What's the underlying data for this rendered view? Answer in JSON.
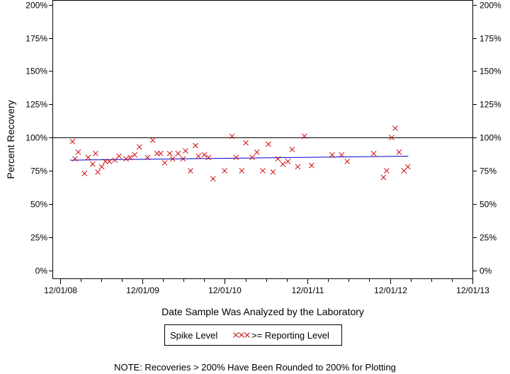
{
  "chart_data": {
    "type": "scatter",
    "title": "",
    "xlabel": "Date Sample Was Analyzed by the Laboratory",
    "ylabel": "Percent Recovery",
    "x_ticks": [
      "12/01/08",
      "12/01/09",
      "12/01/10",
      "12/01/11",
      "12/01/12",
      "12/01/13"
    ],
    "y_ticks": [
      "0%",
      "25%",
      "50%",
      "75%",
      "100%",
      "125%",
      "150%",
      "175%",
      "200%"
    ],
    "y_tick_values": [
      0,
      25,
      50,
      75,
      100,
      125,
      150,
      175,
      200
    ],
    "xlim": [
      "2008-11-01",
      "2013-12-01"
    ],
    "ylim": [
      -6,
      203
    ],
    "grid": false,
    "reference_line": 100,
    "series": [
      {
        "name": ">= Reporting Level",
        "marker": "x",
        "color": "#cc0000",
        "points": [
          [
            "2009-01-26",
            97
          ],
          [
            "2009-02-06",
            84
          ],
          [
            "2009-02-20",
            89
          ],
          [
            "2009-03-20",
            73
          ],
          [
            "2009-04-05",
            85
          ],
          [
            "2009-04-25",
            80
          ],
          [
            "2009-05-08",
            88
          ],
          [
            "2009-05-18",
            74
          ],
          [
            "2009-06-04",
            78
          ],
          [
            "2009-06-20",
            82
          ],
          [
            "2009-07-08",
            82
          ],
          [
            "2009-08-01",
            83
          ],
          [
            "2009-08-20",
            86
          ],
          [
            "2009-09-20",
            84
          ],
          [
            "2009-10-08",
            85
          ],
          [
            "2009-10-28",
            87
          ],
          [
            "2009-11-18",
            93
          ],
          [
            "2009-12-24",
            85
          ],
          [
            "2010-01-16",
            98
          ],
          [
            "2010-02-04",
            88
          ],
          [
            "2010-02-20",
            88
          ],
          [
            "2010-03-10",
            81
          ],
          [
            "2010-04-01",
            88
          ],
          [
            "2010-04-14",
            84
          ],
          [
            "2010-05-08",
            88
          ],
          [
            "2010-05-30",
            84
          ],
          [
            "2010-06-10",
            90
          ],
          [
            "2010-07-02",
            75
          ],
          [
            "2010-07-24",
            94
          ],
          [
            "2010-08-06",
            86
          ],
          [
            "2010-09-01",
            87
          ],
          [
            "2010-09-20",
            85
          ],
          [
            "2010-10-10",
            69
          ],
          [
            "2010-11-30",
            75
          ],
          [
            "2011-01-02",
            101
          ],
          [
            "2011-01-20",
            85
          ],
          [
            "2011-02-14",
            75
          ],
          [
            "2011-03-04",
            96
          ],
          [
            "2011-04-01",
            85
          ],
          [
            "2011-04-22",
            89
          ],
          [
            "2011-05-18",
            75
          ],
          [
            "2011-06-12",
            95
          ],
          [
            "2011-07-02",
            74
          ],
          [
            "2011-07-24",
            84
          ],
          [
            "2011-08-15",
            80
          ],
          [
            "2011-09-06",
            82
          ],
          [
            "2011-09-25",
            91
          ],
          [
            "2011-10-20",
            78
          ],
          [
            "2011-11-18",
            101
          ],
          [
            "2011-12-20",
            79
          ],
          [
            "2012-03-20",
            87
          ],
          [
            "2012-05-01",
            87
          ],
          [
            "2012-05-26",
            82
          ],
          [
            "2012-09-20",
            88
          ],
          [
            "2012-11-02",
            70
          ],
          [
            "2012-11-16",
            75
          ],
          [
            "2012-12-08",
            100
          ],
          [
            "2012-12-24",
            107
          ],
          [
            "2013-01-10",
            89
          ],
          [
            "2013-02-01",
            75
          ],
          [
            "2013-02-18",
            78
          ]
        ]
      },
      {
        "name": "Spike Level",
        "type": "line",
        "color": "#0000cc",
        "points": [
          [
            "2009-01-15",
            83
          ],
          [
            "2013-02-20",
            86
          ]
        ]
      }
    ],
    "legend": {
      "position": "bottom-center",
      "items": [
        "Spike Level",
        ">= Reporting Level"
      ]
    },
    "note": "NOTE: Recoveries > 200% Have Been Rounded to 200% for Plotting"
  }
}
